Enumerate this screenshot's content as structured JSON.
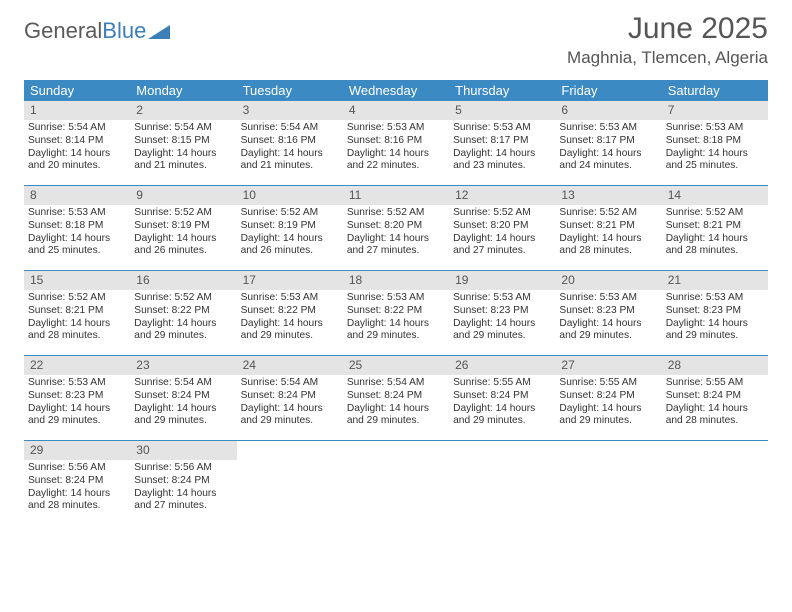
{
  "logo": {
    "word1": "General",
    "word2": "Blue"
  },
  "title": "June 2025",
  "location": "Maghnia, Tlemcen, Algeria",
  "colors": {
    "header_bar": "#3b8ac4",
    "daynum_bg": "#e4e4e4",
    "text": "#333333",
    "title_text": "#555555"
  },
  "dow": [
    "Sunday",
    "Monday",
    "Tuesday",
    "Wednesday",
    "Thursday",
    "Friday",
    "Saturday"
  ],
  "weeks": [
    [
      {
        "n": "1",
        "sr": "5:54 AM",
        "ss": "8:14 PM",
        "dl": "14 hours and 20 minutes."
      },
      {
        "n": "2",
        "sr": "5:54 AM",
        "ss": "8:15 PM",
        "dl": "14 hours and 21 minutes."
      },
      {
        "n": "3",
        "sr": "5:54 AM",
        "ss": "8:16 PM",
        "dl": "14 hours and 21 minutes."
      },
      {
        "n": "4",
        "sr": "5:53 AM",
        "ss": "8:16 PM",
        "dl": "14 hours and 22 minutes."
      },
      {
        "n": "5",
        "sr": "5:53 AM",
        "ss": "8:17 PM",
        "dl": "14 hours and 23 minutes."
      },
      {
        "n": "6",
        "sr": "5:53 AM",
        "ss": "8:17 PM",
        "dl": "14 hours and 24 minutes."
      },
      {
        "n": "7",
        "sr": "5:53 AM",
        "ss": "8:18 PM",
        "dl": "14 hours and 25 minutes."
      }
    ],
    [
      {
        "n": "8",
        "sr": "5:53 AM",
        "ss": "8:18 PM",
        "dl": "14 hours and 25 minutes."
      },
      {
        "n": "9",
        "sr": "5:52 AM",
        "ss": "8:19 PM",
        "dl": "14 hours and 26 minutes."
      },
      {
        "n": "10",
        "sr": "5:52 AM",
        "ss": "8:19 PM",
        "dl": "14 hours and 26 minutes."
      },
      {
        "n": "11",
        "sr": "5:52 AM",
        "ss": "8:20 PM",
        "dl": "14 hours and 27 minutes."
      },
      {
        "n": "12",
        "sr": "5:52 AM",
        "ss": "8:20 PM",
        "dl": "14 hours and 27 minutes."
      },
      {
        "n": "13",
        "sr": "5:52 AM",
        "ss": "8:21 PM",
        "dl": "14 hours and 28 minutes."
      },
      {
        "n": "14",
        "sr": "5:52 AM",
        "ss": "8:21 PM",
        "dl": "14 hours and 28 minutes."
      }
    ],
    [
      {
        "n": "15",
        "sr": "5:52 AM",
        "ss": "8:21 PM",
        "dl": "14 hours and 28 minutes."
      },
      {
        "n": "16",
        "sr": "5:52 AM",
        "ss": "8:22 PM",
        "dl": "14 hours and 29 minutes."
      },
      {
        "n": "17",
        "sr": "5:53 AM",
        "ss": "8:22 PM",
        "dl": "14 hours and 29 minutes."
      },
      {
        "n": "18",
        "sr": "5:53 AM",
        "ss": "8:22 PM",
        "dl": "14 hours and 29 minutes."
      },
      {
        "n": "19",
        "sr": "5:53 AM",
        "ss": "8:23 PM",
        "dl": "14 hours and 29 minutes."
      },
      {
        "n": "20",
        "sr": "5:53 AM",
        "ss": "8:23 PM",
        "dl": "14 hours and 29 minutes."
      },
      {
        "n": "21",
        "sr": "5:53 AM",
        "ss": "8:23 PM",
        "dl": "14 hours and 29 minutes."
      }
    ],
    [
      {
        "n": "22",
        "sr": "5:53 AM",
        "ss": "8:23 PM",
        "dl": "14 hours and 29 minutes."
      },
      {
        "n": "23",
        "sr": "5:54 AM",
        "ss": "8:24 PM",
        "dl": "14 hours and 29 minutes."
      },
      {
        "n": "24",
        "sr": "5:54 AM",
        "ss": "8:24 PM",
        "dl": "14 hours and 29 minutes."
      },
      {
        "n": "25",
        "sr": "5:54 AM",
        "ss": "8:24 PM",
        "dl": "14 hours and 29 minutes."
      },
      {
        "n": "26",
        "sr": "5:55 AM",
        "ss": "8:24 PM",
        "dl": "14 hours and 29 minutes."
      },
      {
        "n": "27",
        "sr": "5:55 AM",
        "ss": "8:24 PM",
        "dl": "14 hours and 29 minutes."
      },
      {
        "n": "28",
        "sr": "5:55 AM",
        "ss": "8:24 PM",
        "dl": "14 hours and 28 minutes."
      }
    ],
    [
      {
        "n": "29",
        "sr": "5:56 AM",
        "ss": "8:24 PM",
        "dl": "14 hours and 28 minutes."
      },
      {
        "n": "30",
        "sr": "5:56 AM",
        "ss": "8:24 PM",
        "dl": "14 hours and 27 minutes."
      },
      null,
      null,
      null,
      null,
      null
    ]
  ],
  "labels": {
    "sunrise": "Sunrise:",
    "sunset": "Sunset:",
    "daylight": "Daylight:"
  }
}
